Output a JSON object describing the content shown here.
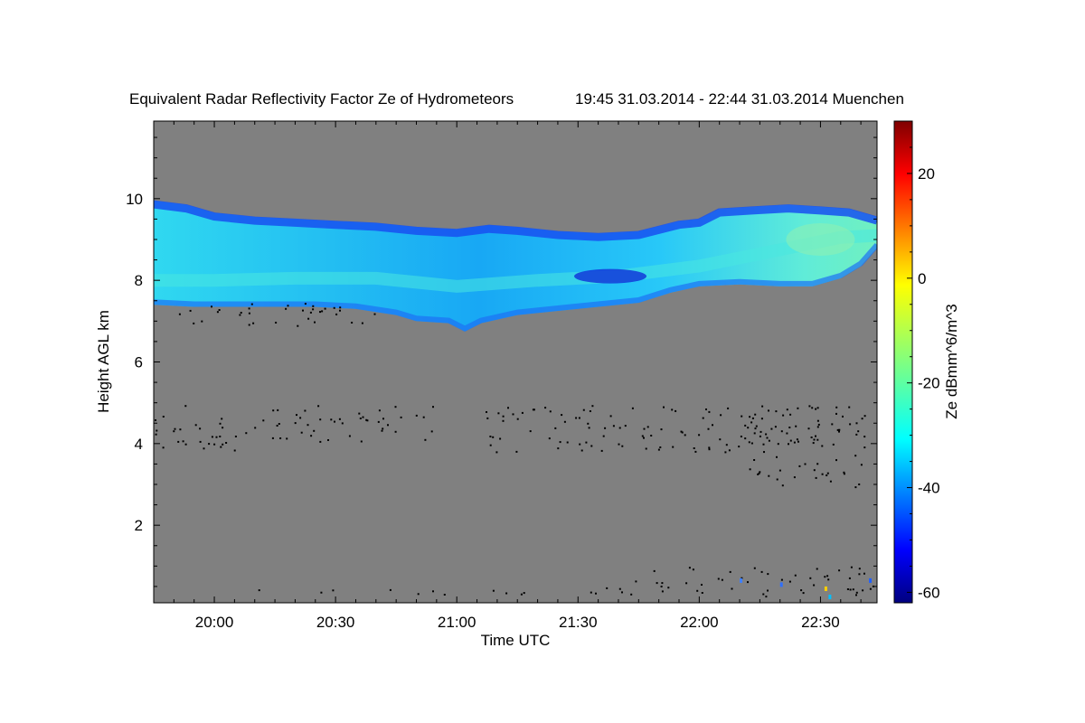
{
  "chart_data": {
    "type": "heatmap",
    "title": "Equivalent Radar Reflectivity Factor Ze of Hydrometeors",
    "subtitle": "19:45 31.03.2014 - 22:44 31.03.2014 Muenchen",
    "xlabel": "Time UTC",
    "ylabel": "Height AGL km",
    "colorbar_label": "Ze dBmm^6/m^3",
    "x_range_minutes": [
      1185,
      1364
    ],
    "ylim": [
      0.1,
      11.9
    ],
    "x_ticks": [
      {
        "value": 1200,
        "label": "20:00"
      },
      {
        "value": 1230,
        "label": "20:30"
      },
      {
        "value": 1260,
        "label": "21:00"
      },
      {
        "value": 1290,
        "label": "21:30"
      },
      {
        "value": 1320,
        "label": "22:00"
      },
      {
        "value": 1350,
        "label": "22:30"
      }
    ],
    "y_ticks": [
      {
        "value": 2,
        "label": "2"
      },
      {
        "value": 4,
        "label": "4"
      },
      {
        "value": 6,
        "label": "6"
      },
      {
        "value": 8,
        "label": "8"
      },
      {
        "value": 10,
        "label": "10"
      }
    ],
    "colorbar_range": [
      -62,
      30
    ],
    "colorbar_ticks": [
      {
        "value": -60,
        "label": "-60"
      },
      {
        "value": -40,
        "label": "-40"
      },
      {
        "value": -20,
        "label": "-20"
      },
      {
        "value": 0,
        "label": "0"
      },
      {
        "value": 20,
        "label": "20"
      }
    ],
    "background_color": "#808080",
    "cloud_layer": {
      "top_km": [
        [
          1185,
          9.95
        ],
        [
          1193,
          9.85
        ],
        [
          1200,
          9.65
        ],
        [
          1210,
          9.55
        ],
        [
          1220,
          9.5
        ],
        [
          1230,
          9.45
        ],
        [
          1240,
          9.4
        ],
        [
          1250,
          9.3
        ],
        [
          1260,
          9.25
        ],
        [
          1268,
          9.35
        ],
        [
          1275,
          9.3
        ],
        [
          1285,
          9.2
        ],
        [
          1295,
          9.15
        ],
        [
          1305,
          9.2
        ],
        [
          1315,
          9.45
        ],
        [
          1320,
          9.5
        ],
        [
          1325,
          9.75
        ],
        [
          1333,
          9.8
        ],
        [
          1342,
          9.85
        ],
        [
          1350,
          9.8
        ],
        [
          1357,
          9.75
        ],
        [
          1364,
          9.55
        ]
      ],
      "base_km": [
        [
          1185,
          7.4
        ],
        [
          1195,
          7.35
        ],
        [
          1205,
          7.35
        ],
        [
          1215,
          7.35
        ],
        [
          1225,
          7.35
        ],
        [
          1235,
          7.3
        ],
        [
          1245,
          7.15
        ],
        [
          1250,
          7.0
        ],
        [
          1258,
          6.95
        ],
        [
          1262,
          6.75
        ],
        [
          1266,
          6.95
        ],
        [
          1275,
          7.15
        ],
        [
          1285,
          7.25
        ],
        [
          1295,
          7.35
        ],
        [
          1305,
          7.45
        ],
        [
          1313,
          7.7
        ],
        [
          1320,
          7.85
        ],
        [
          1330,
          7.9
        ],
        [
          1340,
          7.85
        ],
        [
          1348,
          7.85
        ],
        [
          1355,
          8.05
        ],
        [
          1360,
          8.35
        ],
        [
          1364,
          8.8
        ]
      ],
      "core_km": [
        [
          1185,
          8.0
        ],
        [
          1200,
          8.0
        ],
        [
          1220,
          8.05
        ],
        [
          1240,
          8.05
        ],
        [
          1260,
          7.85
        ],
        [
          1280,
          8.0
        ],
        [
          1300,
          8.1
        ],
        [
          1320,
          8.35
        ],
        [
          1340,
          8.75
        ],
        [
          1355,
          9.05
        ],
        [
          1364,
          9.1
        ]
      ]
    },
    "noise_bands_km": [
      {
        "x": [
          1185,
          1241
        ],
        "y": [
          6.9,
          7.45
        ]
      },
      {
        "x": [
          1185,
          1210
        ],
        "y": [
          3.85,
          4.95
        ]
      },
      {
        "x": [
          1210,
          1255
        ],
        "y": [
          4.05,
          4.95
        ]
      },
      {
        "x": [
          1266,
          1350
        ],
        "y": [
          3.8,
          4.95
        ]
      },
      {
        "x": [
          1330,
          1362
        ],
        "y": [
          2.95,
          4.95
        ]
      },
      {
        "x": [
          1210,
          1304
        ],
        "y": [
          0.32,
          0.48
        ]
      },
      {
        "x": [
          1304,
          1364
        ],
        "y": [
          0.25,
          1.0
        ]
      }
    ]
  }
}
